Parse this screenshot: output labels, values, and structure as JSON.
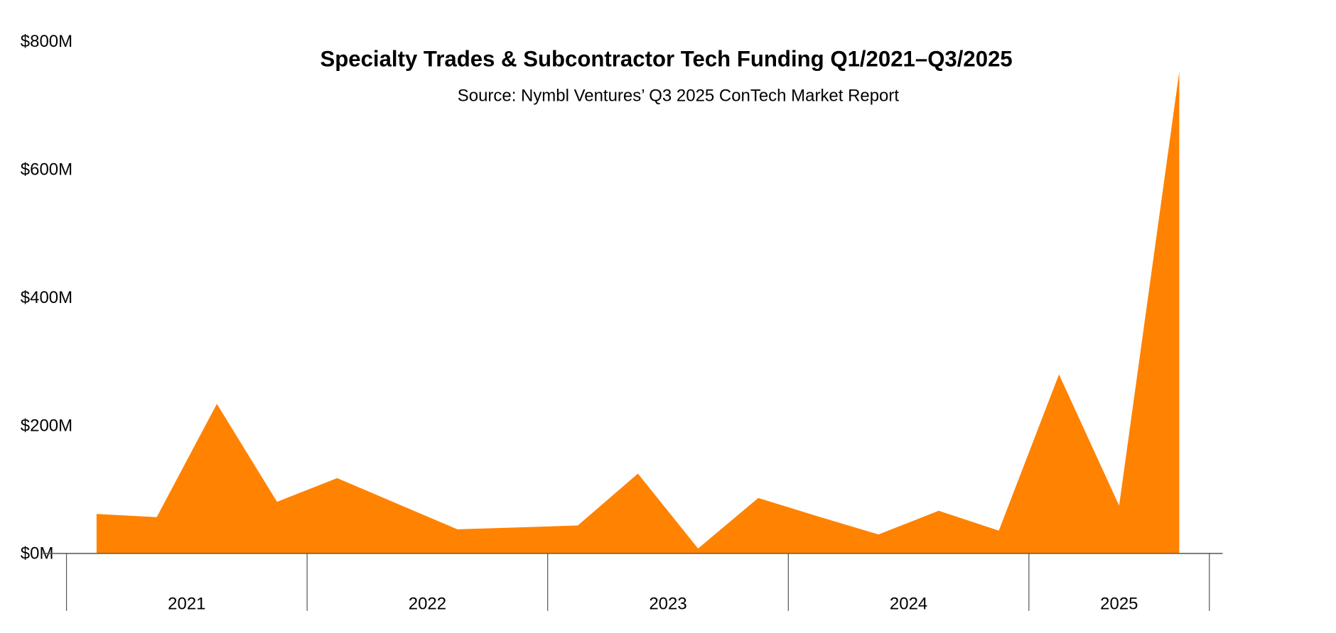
{
  "chart_data": {
    "type": "area",
    "title": "Specialty Trades & Subcontractor Tech Funding Q1/2021–Q3/2025",
    "subtitle": "Source: Nymbl Ventures’ Q3 2025 ConTech Market Report",
    "xlabel": "",
    "ylabel": "",
    "ylim": [
      0,
      800
    ],
    "y_ticks": [
      0,
      200,
      400,
      600,
      800
    ],
    "y_tick_labels": [
      "$0M",
      "$200M",
      "$400M",
      "$600M",
      "$800M"
    ],
    "x_groups": [
      "2021",
      "2022",
      "2023",
      "2024",
      "2025"
    ],
    "x": [
      "Q1 2021",
      "Q2 2021",
      "Q3 2021",
      "Q4 2021",
      "Q1 2022",
      "Q2 2022",
      "Q3 2022",
      "Q4 2022",
      "Q1 2023",
      "Q2 2023",
      "Q3 2023",
      "Q4 2023",
      "Q1 2024",
      "Q2 2024",
      "Q3 2024",
      "Q4 2024",
      "Q1 2025",
      "Q2 2025",
      "Q3 2025"
    ],
    "values": [
      61,
      56,
      233,
      80,
      117,
      77,
      37,
      40,
      43,
      124,
      7,
      86,
      57,
      29,
      66,
      35,
      279,
      74,
      752
    ],
    "grid": false,
    "color": "#ff8200"
  }
}
